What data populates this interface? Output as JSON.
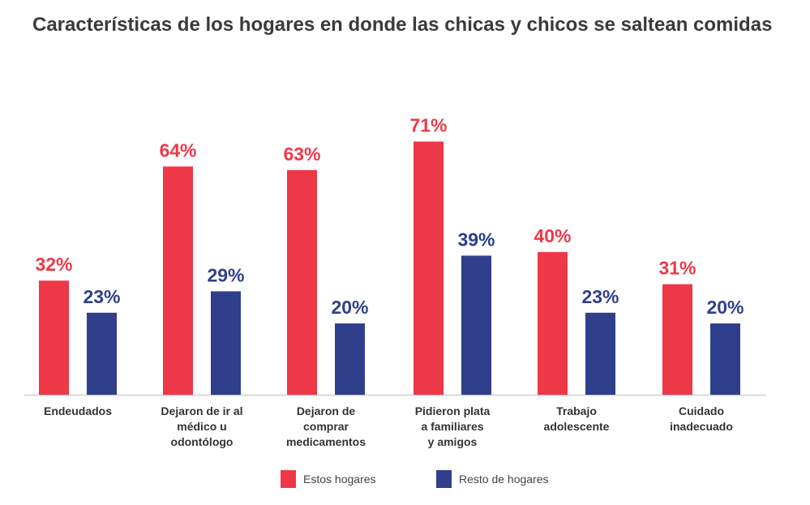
{
  "chart_data": {
    "type": "bar",
    "title": "Características de los hogares en donde las chicas y chicos se saltean comidas",
    "xlabel": "",
    "ylabel": "",
    "ylim": [
      0,
      100
    ],
    "grid": false,
    "legend_position": "bottom",
    "categories": [
      [
        "Endeudados"
      ],
      [
        "Dejaron de ir al",
        "médico u",
        "odontólogo"
      ],
      [
        "Dejaron de",
        "comprar",
        "medicamentos"
      ],
      [
        "Pidieron plata",
        "a familiares",
        "y amigos"
      ],
      [
        "Trabajo",
        "adolescente"
      ],
      [
        "Cuidado",
        "inadecuado"
      ]
    ],
    "series": [
      {
        "name": "Estos hogares",
        "color": "#ee3847",
        "values": [
          32,
          64,
          63,
          71,
          40,
          31
        ],
        "labels": [
          "32%",
          "64%",
          "63%",
          "71%",
          "40%",
          "31%"
        ]
      },
      {
        "name": "Resto de hogares",
        "color": "#2f3f8c",
        "values": [
          23,
          29,
          20,
          39,
          23,
          20
        ],
        "labels": [
          "23%",
          "29%",
          "20%",
          "39%",
          "23%",
          "20%"
        ]
      }
    ]
  }
}
